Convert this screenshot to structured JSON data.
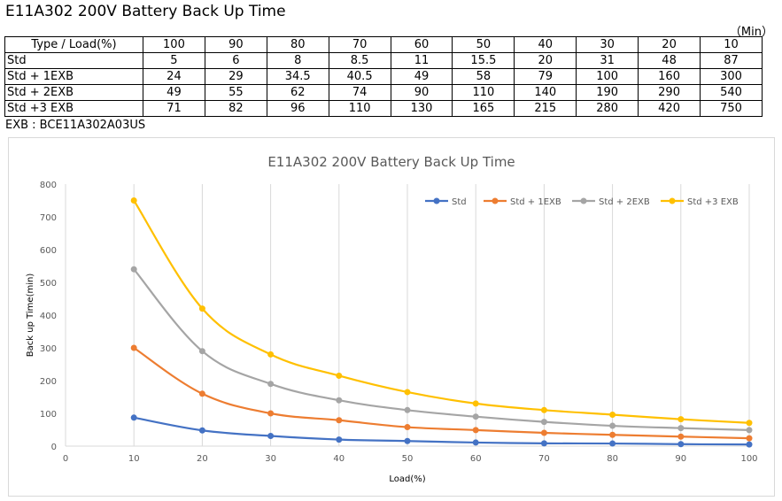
{
  "title": "E11A302 200V Battery Back Up Time",
  "unit": "（Min）",
  "table": {
    "header": [
      "Type / Load(%)",
      "100",
      "90",
      "80",
      "70",
      "60",
      "50",
      "40",
      "30",
      "20",
      "10"
    ],
    "rows": [
      [
        "Std",
        "5",
        "6",
        "8",
        "8.5",
        "11",
        "15.5",
        "20",
        "31",
        "48",
        "87"
      ],
      [
        "Std + 1EXB",
        "24",
        "29",
        "34.5",
        "40.5",
        "49",
        "58",
        "79",
        "100",
        "160",
        "300"
      ],
      [
        "Std + 2EXB",
        "49",
        "55",
        "62",
        "74",
        "90",
        "110",
        "140",
        "190",
        "290",
        "540"
      ],
      [
        "Std +3 EXB",
        "71",
        "82",
        "96",
        "110",
        "130",
        "165",
        "215",
        "280",
        "420",
        "750"
      ]
    ]
  },
  "note": "EXB : BCE11A302A03US",
  "chart_data": {
    "type": "line",
    "title": "E11A302 200V Battery Back Up Time",
    "xlabel": "Load(%)",
    "ylabel": "Back up Time(min)",
    "xlim": [
      0,
      100
    ],
    "ylim": [
      0,
      800
    ],
    "xticks": [
      0,
      10,
      20,
      30,
      40,
      50,
      60,
      70,
      80,
      90,
      100
    ],
    "yticks": [
      0,
      100,
      200,
      300,
      400,
      500,
      600,
      700,
      800
    ],
    "grid": "vertical",
    "legend_position": "top-right",
    "x": [
      10,
      20,
      30,
      40,
      50,
      60,
      70,
      80,
      90,
      100
    ],
    "series": [
      {
        "name": "Std",
        "color": "#4472c4",
        "values": [
          87,
          48,
          31,
          20,
          15.5,
          11,
          8.5,
          8,
          6,
          5
        ]
      },
      {
        "name": "Std + 1EXB",
        "color": "#ed7d31",
        "values": [
          300,
          160,
          100,
          79,
          58,
          49,
          40.5,
          34.5,
          29,
          24
        ]
      },
      {
        "name": "Std + 2EXB",
        "color": "#a5a5a5",
        "values": [
          540,
          290,
          190,
          140,
          110,
          90,
          74,
          62,
          55,
          49
        ]
      },
      {
        "name": "Std +3 EXB",
        "color": "#ffc000",
        "values": [
          750,
          420,
          280,
          215,
          165,
          130,
          110,
          96,
          82,
          71
        ]
      }
    ]
  }
}
